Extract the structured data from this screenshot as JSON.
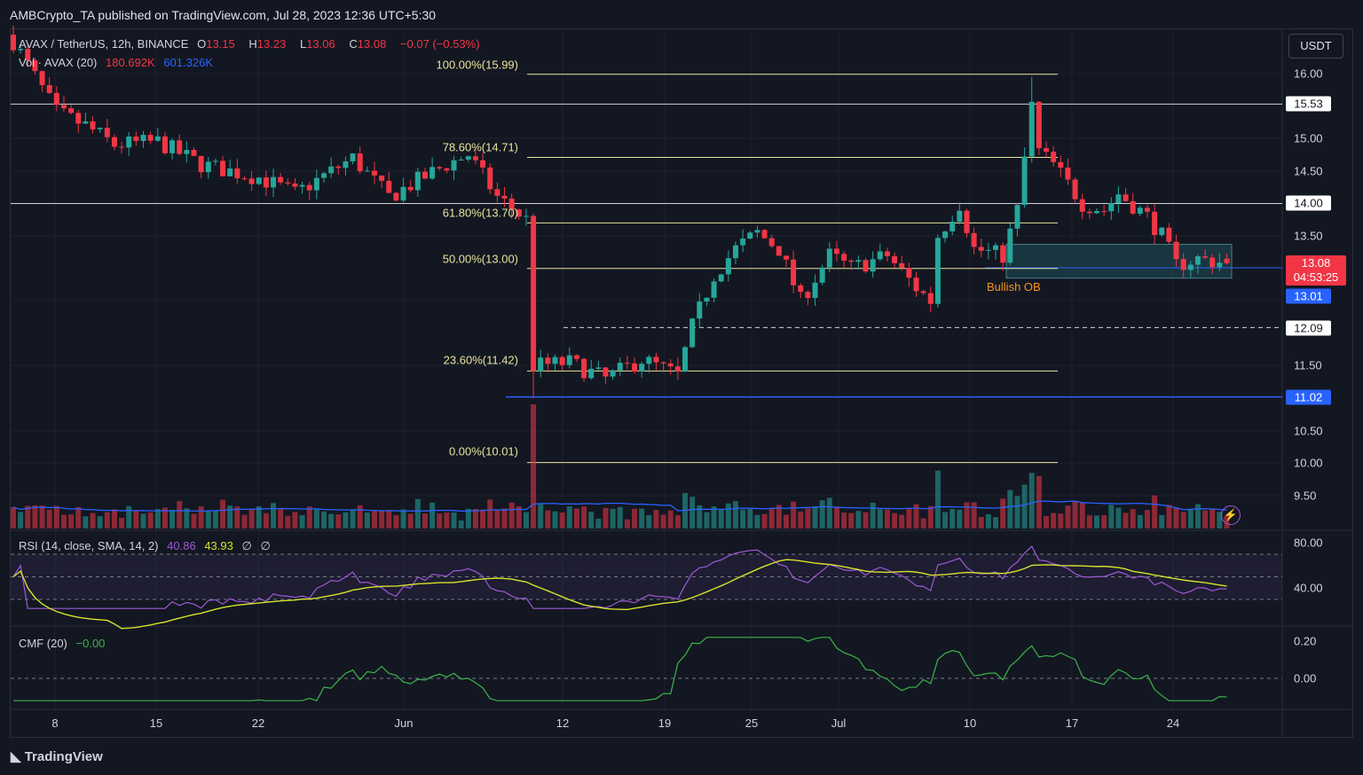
{
  "header": {
    "published": "AMBCrypto_TA published on TradingView.com, Jul 28, 2023 12:36 UTC+5:30"
  },
  "legend": {
    "symbol": "AVAX / TetherUS, 12h, BINANCE",
    "o_label": "O",
    "o": "13.15",
    "h_label": "H",
    "h": "13.23",
    "l_label": "L",
    "l": "13.06",
    "c_label": "C",
    "c": "13.08",
    "change": "−0.07 (−0.53%)",
    "vol_label": "Vol · AVAX (20)",
    "vol": "180.692K",
    "vol_ma": "601.326K",
    "rsi_label": "RSI (14, close, SMA, 14, 2)",
    "rsi": "40.86",
    "rsi_ma": "43.93",
    "rsi_x1": "∅",
    "rsi_x2": "∅",
    "cmf_label": "CMF (20)",
    "cmf": "−0.00"
  },
  "currency_button": "USDT",
  "price_axis": [
    "16.00",
    "15.00",
    "14.50",
    "13.50",
    "11.50",
    "10.50",
    "10.00",
    "9.50"
  ],
  "rsi_axis": [
    "80.00",
    "40.00"
  ],
  "cmf_axis": [
    "0.20",
    "0.00"
  ],
  "time_axis": [
    "8",
    "15",
    "22",
    "Jun",
    "12",
    "19",
    "25",
    "Jul",
    "10",
    "17",
    "24"
  ],
  "tags": {
    "last": "13.08",
    "countdown": "04:53:25",
    "blue1": "13.01",
    "dashed": "12.09",
    "white1": "15.53",
    "white2": "14.00",
    "blue2": "11.02"
  },
  "fib_levels": [
    {
      "label": "100.00%(15.99)",
      "price": 15.99
    },
    {
      "label": "78.60%(14.71)",
      "price": 14.71
    },
    {
      "label": "61.80%(13.70)",
      "price": 13.7
    },
    {
      "label": "50.00%(13.00)",
      "price": 13.0
    },
    {
      "label": "23.60%(11.42)",
      "price": 11.42
    },
    {
      "label": "0.00%(10.01)",
      "price": 10.01
    }
  ],
  "order_block": {
    "label": "Bullish OB",
    "top": 13.37,
    "bottom": 12.85
  },
  "colors": {
    "up": "#26a69a",
    "down": "#f23645",
    "fib": "#e8e49a",
    "blue": "#2962ff",
    "rsi": "#9c5ad6",
    "rsi_ma": "#d7e22a",
    "cmf": "#3bb54a",
    "ob": "#1f4f57"
  },
  "chart_data": {
    "type": "candlestick",
    "title": "AVAX / TetherUS, 12h, BINANCE",
    "ylim": [
      9.2,
      16.6
    ],
    "candle_count": 169,
    "close_keypoints": [
      [
        0,
        16.5
      ],
      [
        6,
        15.4
      ],
      [
        10,
        15.2
      ],
      [
        14,
        14.9
      ],
      [
        20,
        14.95
      ],
      [
        26,
        14.6
      ],
      [
        34,
        14.4
      ],
      [
        39,
        14.15
      ],
      [
        47,
        14.7
      ],
      [
        52,
        14.1
      ],
      [
        60,
        14.6
      ],
      [
        63,
        14.75
      ],
      [
        67,
        14.1
      ],
      [
        71,
        13.75
      ],
      [
        72,
        11.5
      ],
      [
        77,
        11.55
      ],
      [
        82,
        11.3
      ],
      [
        87,
        11.6
      ],
      [
        92,
        11.35
      ],
      [
        94,
        12.1
      ],
      [
        97,
        12.9
      ],
      [
        100,
        13.3
      ],
      [
        103,
        13.55
      ],
      [
        106,
        13.3
      ],
      [
        109,
        12.5
      ],
      [
        113,
        13.2
      ],
      [
        116,
        13.0
      ],
      [
        121,
        13.2
      ],
      [
        125,
        12.7
      ],
      [
        127,
        12.5
      ],
      [
        128,
        13.5
      ],
      [
        131,
        14.0
      ],
      [
        133,
        13.3
      ],
      [
        137,
        13.2
      ],
      [
        139,
        13.9
      ],
      [
        141,
        15.5
      ],
      [
        142,
        14.8
      ],
      [
        144,
        14.6
      ],
      [
        146,
        14.3
      ],
      [
        148,
        14.0
      ],
      [
        151,
        13.9
      ],
      [
        153,
        14.15
      ],
      [
        157,
        13.8
      ],
      [
        159,
        13.5
      ],
      [
        161,
        13.05
      ],
      [
        164,
        13.15
      ],
      [
        168,
        13.08
      ]
    ],
    "last_candle": {
      "open": 13.15,
      "high": 13.23,
      "low": 13.06,
      "close": 13.08
    },
    "horizontal_lines": [
      15.53,
      14.0,
      13.01,
      12.09,
      11.02
    ]
  }
}
